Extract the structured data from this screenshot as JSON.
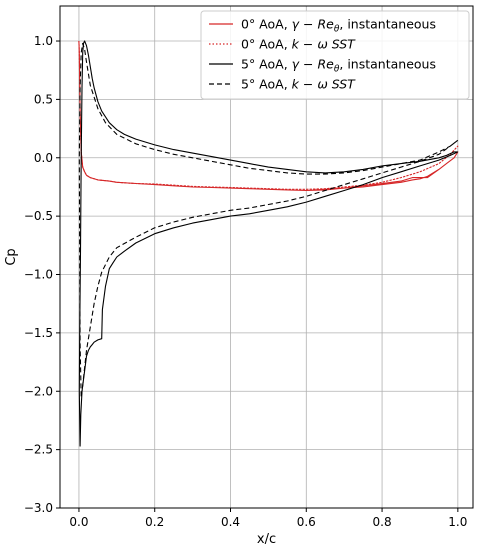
{
  "chart_data": {
    "type": "line",
    "title": "",
    "xlabel": "x/c",
    "ylabel": "Cp",
    "xlim": [
      -0.05,
      1.04
    ],
    "ylim": [
      -3.0,
      1.3
    ],
    "yaxis_inverted": false,
    "grid": true,
    "legend_position": "top-right",
    "x_ticks": [
      0.0,
      0.2,
      0.4,
      0.6,
      0.8,
      1.0
    ],
    "x_tick_labels": [
      "0.0",
      "0.2",
      "0.4",
      "0.6",
      "0.8",
      "1.0"
    ],
    "y_ticks": [
      1.0,
      0.5,
      0.0,
      -0.5,
      -1.0,
      -1.5,
      -2.0,
      -2.5,
      -3.0
    ],
    "y_tick_labels": [
      "1.0",
      "0.5",
      "0.0",
      "−0.5",
      "−1.0",
      "−1.5",
      "−2.0",
      "−2.5",
      "−3.0"
    ],
    "series": [
      {
        "legend": {
          "angle": "0°",
          "rest": " AoA, ",
          "model": "γ − Re",
          "sub": "θ",
          "tail": ", instantaneous"
        },
        "color": "#d62728",
        "dash": "solid",
        "x": [
          0.0,
          0.001,
          0.003,
          0.006,
          0.01,
          0.015,
          0.02,
          0.03,
          0.05,
          0.08,
          0.1,
          0.15,
          0.2,
          0.25,
          0.3,
          0.35,
          0.4,
          0.45,
          0.5,
          0.55,
          0.6,
          0.65,
          0.7,
          0.75,
          0.8,
          0.85,
          0.88,
          0.9,
          0.92,
          0.95,
          0.97,
          0.99,
          1.0,
          0.99,
          0.97,
          0.95,
          0.92,
          0.9,
          0.88,
          0.85,
          0.8,
          0.75,
          0.7,
          0.65,
          0.6,
          0.55,
          0.5,
          0.45,
          0.4,
          0.35,
          0.3,
          0.25,
          0.2,
          0.15,
          0.1,
          0.08,
          0.05,
          0.03,
          0.02,
          0.015,
          0.01,
          0.006,
          0.003,
          0.001,
          0.0
        ],
        "y": [
          1.0,
          0.9,
          0.4,
          0.05,
          -0.08,
          -0.12,
          -0.15,
          -0.17,
          -0.19,
          -0.2,
          -0.21,
          -0.22,
          -0.23,
          -0.24,
          -0.25,
          -0.255,
          -0.26,
          -0.265,
          -0.27,
          -0.275,
          -0.28,
          -0.275,
          -0.26,
          -0.24,
          -0.22,
          -0.2,
          -0.17,
          -0.17,
          -0.17,
          -0.1,
          -0.05,
          0.0,
          0.05,
          0.0,
          -0.05,
          -0.1,
          -0.16,
          -0.18,
          -0.19,
          -0.21,
          -0.23,
          -0.25,
          -0.26,
          -0.27,
          -0.28,
          -0.275,
          -0.27,
          -0.265,
          -0.26,
          -0.255,
          -0.25,
          -0.24,
          -0.23,
          -0.22,
          -0.21,
          -0.2,
          -0.19,
          -0.17,
          -0.15,
          -0.12,
          -0.08,
          0.05,
          0.4,
          0.9,
          1.0
        ]
      },
      {
        "legend": {
          "angle": "0°",
          "rest": " AoA, ",
          "model": "k − ω SST",
          "sub": "",
          "tail": ""
        },
        "color": "#d62728",
        "dash": "dotted",
        "x": [
          0.0,
          0.001,
          0.003,
          0.006,
          0.01,
          0.015,
          0.02,
          0.03,
          0.05,
          0.08,
          0.1,
          0.15,
          0.2,
          0.25,
          0.3,
          0.35,
          0.4,
          0.45,
          0.5,
          0.55,
          0.6,
          0.65,
          0.7,
          0.75,
          0.8,
          0.85,
          0.9,
          0.95,
          0.98,
          1.0,
          0.98,
          0.95,
          0.9,
          0.85,
          0.8,
          0.75,
          0.7,
          0.65,
          0.6,
          0.55,
          0.5,
          0.45,
          0.4,
          0.35,
          0.3,
          0.25,
          0.2,
          0.15,
          0.1,
          0.08,
          0.05,
          0.03,
          0.02,
          0.015,
          0.01,
          0.006,
          0.003,
          0.001,
          0.0
        ],
        "y": [
          1.0,
          0.9,
          0.4,
          0.05,
          -0.08,
          -0.12,
          -0.15,
          -0.17,
          -0.19,
          -0.2,
          -0.21,
          -0.22,
          -0.225,
          -0.235,
          -0.245,
          -0.25,
          -0.255,
          -0.26,
          -0.265,
          -0.27,
          -0.27,
          -0.265,
          -0.25,
          -0.235,
          -0.21,
          -0.17,
          -0.12,
          -0.05,
          0.03,
          0.1,
          0.03,
          -0.05,
          -0.12,
          -0.17,
          -0.21,
          -0.235,
          -0.25,
          -0.265,
          -0.27,
          -0.27,
          -0.265,
          -0.26,
          -0.255,
          -0.25,
          -0.245,
          -0.235,
          -0.225,
          -0.22,
          -0.21,
          -0.2,
          -0.19,
          -0.17,
          -0.15,
          -0.12,
          -0.08,
          0.05,
          0.4,
          0.9,
          1.0
        ]
      },
      {
        "legend": {
          "angle": "5°",
          "rest": " AoA, ",
          "model": "γ − Re",
          "sub": "θ",
          "tail": ", instantaneous"
        },
        "color": "#000000",
        "dash": "solid",
        "x": [
          1.0,
          0.99,
          0.97,
          0.95,
          0.9,
          0.85,
          0.8,
          0.75,
          0.7,
          0.65,
          0.6,
          0.55,
          0.5,
          0.45,
          0.4,
          0.35,
          0.3,
          0.25,
          0.2,
          0.15,
          0.12,
          0.1,
          0.08,
          0.06,
          0.05,
          0.04,
          0.035,
          0.03,
          0.025,
          0.02,
          0.015,
          0.012,
          0.01,
          0.008,
          0.006,
          0.004,
          0.002,
          0.001,
          0.003,
          0.005,
          0.008,
          0.012,
          0.016,
          0.02,
          0.025,
          0.03,
          0.035,
          0.04,
          0.05,
          0.06,
          0.062,
          0.07,
          0.08,
          0.09,
          0.1,
          0.12,
          0.15,
          0.2,
          0.25,
          0.3,
          0.35,
          0.4,
          0.45,
          0.5,
          0.55,
          0.6,
          0.65,
          0.7,
          0.75,
          0.8,
          0.85,
          0.9,
          0.95,
          0.98,
          1.0
        ],
        "y": [
          0.05,
          0.05,
          0.02,
          0.0,
          -0.03,
          -0.05,
          -0.07,
          -0.1,
          -0.12,
          -0.13,
          -0.12,
          -0.1,
          -0.08,
          -0.05,
          -0.02,
          0.01,
          0.04,
          0.07,
          0.11,
          0.16,
          0.2,
          0.24,
          0.3,
          0.4,
          0.48,
          0.6,
          0.68,
          0.78,
          0.88,
          0.96,
          1.0,
          0.98,
          0.9,
          0.6,
          0.0,
          -0.8,
          -1.5,
          -2.0,
          -2.47,
          -2.2,
          -2.0,
          -1.9,
          -1.8,
          -1.7,
          -1.65,
          -1.62,
          -1.6,
          -1.58,
          -1.56,
          -1.55,
          -1.3,
          -1.1,
          -0.95,
          -0.9,
          -0.85,
          -0.8,
          -0.73,
          -0.65,
          -0.6,
          -0.56,
          -0.53,
          -0.5,
          -0.48,
          -0.45,
          -0.42,
          -0.38,
          -0.33,
          -0.28,
          -0.23,
          -0.17,
          -0.12,
          -0.07,
          -0.02,
          0.02,
          0.05
        ]
      },
      {
        "legend": {
          "angle": "5°",
          "rest": " AoA, ",
          "model": "k − ω SST",
          "sub": "",
          "tail": ""
        },
        "color": "#000000",
        "dash": "dashed",
        "x": [
          1.0,
          0.98,
          0.95,
          0.9,
          0.85,
          0.8,
          0.75,
          0.7,
          0.65,
          0.6,
          0.55,
          0.5,
          0.45,
          0.4,
          0.35,
          0.3,
          0.25,
          0.2,
          0.15,
          0.1,
          0.07,
          0.05,
          0.03,
          0.02,
          0.015,
          0.01,
          0.006,
          0.003,
          0.001,
          0.003,
          0.006,
          0.01,
          0.015,
          0.02,
          0.03,
          0.04,
          0.05,
          0.06,
          0.08,
          0.1,
          0.15,
          0.2,
          0.25,
          0.3,
          0.35,
          0.4,
          0.45,
          0.5,
          0.55,
          0.6,
          0.65,
          0.7,
          0.75,
          0.8,
          0.85,
          0.9,
          0.95,
          0.98,
          1.0
        ],
        "y": [
          0.15,
          0.1,
          0.05,
          -0.02,
          -0.05,
          -0.08,
          -0.11,
          -0.13,
          -0.14,
          -0.14,
          -0.13,
          -0.11,
          -0.09,
          -0.06,
          -0.03,
          0.0,
          0.03,
          0.07,
          0.12,
          0.2,
          0.3,
          0.42,
          0.62,
          0.82,
          0.93,
          0.98,
          0.9,
          0.6,
          0.0,
          -1.6,
          -2.05,
          -1.95,
          -1.8,
          -1.65,
          -1.45,
          -1.25,
          -1.1,
          -0.98,
          -0.85,
          -0.77,
          -0.68,
          -0.6,
          -0.55,
          -0.51,
          -0.48,
          -0.45,
          -0.43,
          -0.4,
          -0.37,
          -0.33,
          -0.28,
          -0.23,
          -0.18,
          -0.13,
          -0.08,
          -0.03,
          0.03,
          0.1,
          0.15
        ]
      }
    ]
  }
}
